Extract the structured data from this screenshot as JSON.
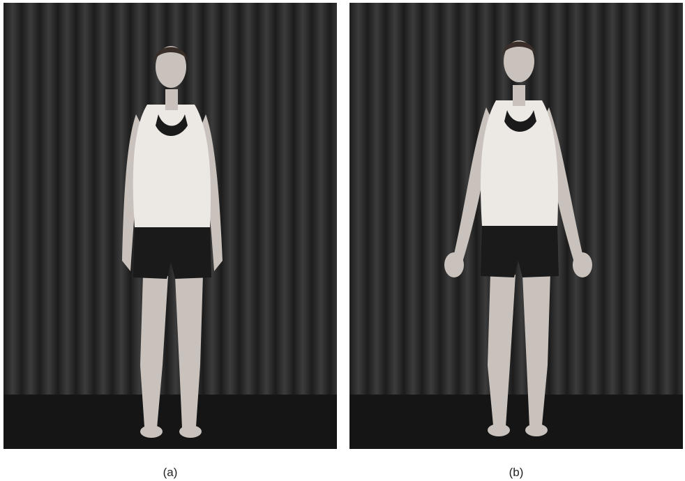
{
  "figure": {
    "panels": [
      {
        "caption": "(a)",
        "pose": "arms-relaxed-palms-in"
      },
      {
        "caption": "(b)",
        "pose": "arms-abducted-palms-forward"
      }
    ],
    "colors": {
      "curtain_dark": "#1c1c1c",
      "curtain_light": "#3c3c3c",
      "skin": "#c9c2bc",
      "tank_top": "#ece8e4",
      "shorts": "#1a1a1a",
      "floor": "#151515"
    }
  }
}
